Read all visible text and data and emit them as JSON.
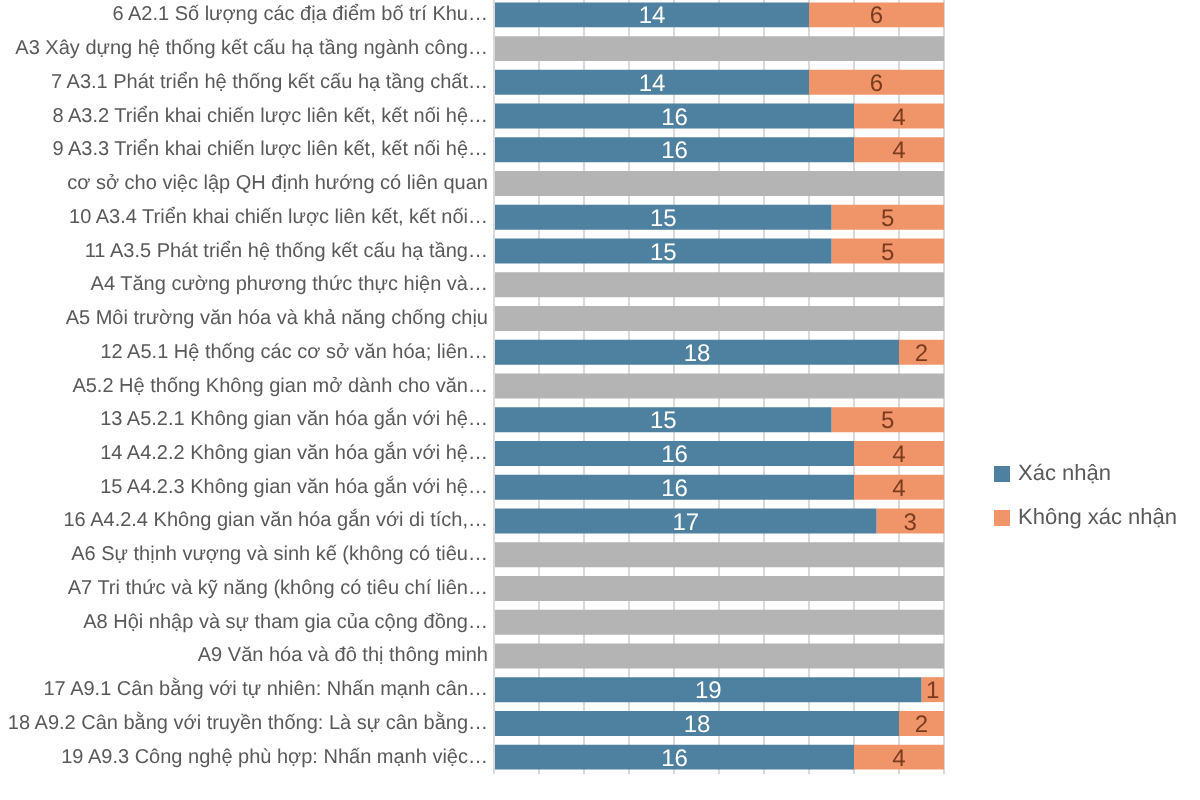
{
  "chart_data": {
    "type": "bar",
    "orientation": "horizontal",
    "stacked": true,
    "categories": [
      "6 A2.1 Số lượng các địa điểm bố trí Khu…",
      "A3 Xây dựng hệ thống kết cấu hạ tầng ngành công…",
      "7 A3.1 Phát triển hệ thống kết cấu hạ tầng chất…",
      "8 A3.2 Triển khai chiến lược liên kết, kết nối hệ…",
      "9 A3.3 Triển khai chiến lược liên kết, kết nối hệ…",
      "cơ sở cho việc lập QH định hướng có liên quan",
      "10 A3.4 Triển khai chiến lược liên kết, kết nối…",
      "11 A3.5 Phát triển hệ thống kết cấu hạ tầng…",
      "A4 Tăng cường phương thức thực hiện và…",
      "A5 Môi trường văn hóa và khả năng chống chịu",
      "12 A5.1 Hệ thống các cơ sở văn hóa; liên…",
      "A5.2 Hệ thống Không gian mở dành cho văn…",
      "13 A5.2.1 Không gian văn hóa gắn với hệ…",
      "14 A4.2.2 Không gian văn hóa gắn với hệ…",
      "15 A4.2.3 Không gian văn hóa gắn với hệ…",
      "16 A4.2.4 Không gian văn hóa gắn với di tích,…",
      "A6 Sự thịnh vượng và sinh kế (không có tiêu…",
      "A7 Tri thức và kỹ năng (không có tiêu chí liên…",
      "A8 Hội nhập và sự tham gia của cộng đồng…",
      "A9 Văn hóa và đô thị thông minh",
      "17 A9.1 Cân bằng với tự nhiên: Nhấn mạnh cân…",
      "18 A9.2 Cân bằng với truyền thống: Là sự cân bằng…",
      "19 A9.3 Công nghệ phù hợp: Nhấn mạnh việc…"
    ],
    "series": [
      {
        "name": "Xác nhận",
        "color": "#4e81a0",
        "values": [
          14,
          null,
          14,
          16,
          16,
          null,
          15,
          15,
          null,
          null,
          18,
          null,
          15,
          16,
          16,
          17,
          null,
          null,
          null,
          null,
          19,
          18,
          16
        ],
        "value_labels": [
          "14",
          null,
          "14",
          "16",
          "16",
          null,
          "15",
          "15",
          null,
          null,
          "18",
          null,
          "15",
          "16",
          "16",
          "17",
          null,
          null,
          null,
          null,
          "19",
          "18",
          "16"
        ]
      },
      {
        "name": "Không xác nhận",
        "color": "#f0956a",
        "values": [
          6,
          null,
          6,
          4,
          4,
          null,
          5,
          5,
          null,
          null,
          2,
          null,
          5,
          4,
          4,
          3,
          null,
          null,
          null,
          null,
          1,
          2,
          4
        ],
        "value_labels": [
          "6",
          null,
          "6",
          "4",
          "4",
          null,
          "5",
          "5",
          null,
          null,
          "2",
          null,
          "5",
          "4",
          "4",
          "3",
          null,
          null,
          null,
          null,
          "1",
          "2",
          "4"
        ]
      },
      {
        "color": "#b4b4b4",
        "values": [
          null,
          20,
          null,
          null,
          null,
          20,
          null,
          null,
          20,
          20,
          null,
          20,
          null,
          null,
          null,
          null,
          20,
          20,
          20,
          20,
          null,
          null,
          null
        ]
      }
    ],
    "xlim": [
      0,
      20
    ],
    "xticks": [
      {
        "value": 0,
        "label": null
      },
      {
        "value": 2,
        "label": null
      },
      {
        "value": 4,
        "label": null
      },
      {
        "value": 6,
        "label": null
      },
      {
        "value": 8,
        "label": null
      },
      {
        "value": 10,
        "label": null
      },
      {
        "value": 12,
        "label": null
      },
      {
        "value": 14,
        "label": null
      },
      {
        "value": 16,
        "label": null
      },
      {
        "value": 18,
        "label": null
      },
      {
        "value": 20,
        "label": null
      }
    ],
    "grid": "x",
    "tick_labels": "y",
    "legend": "right"
  }
}
